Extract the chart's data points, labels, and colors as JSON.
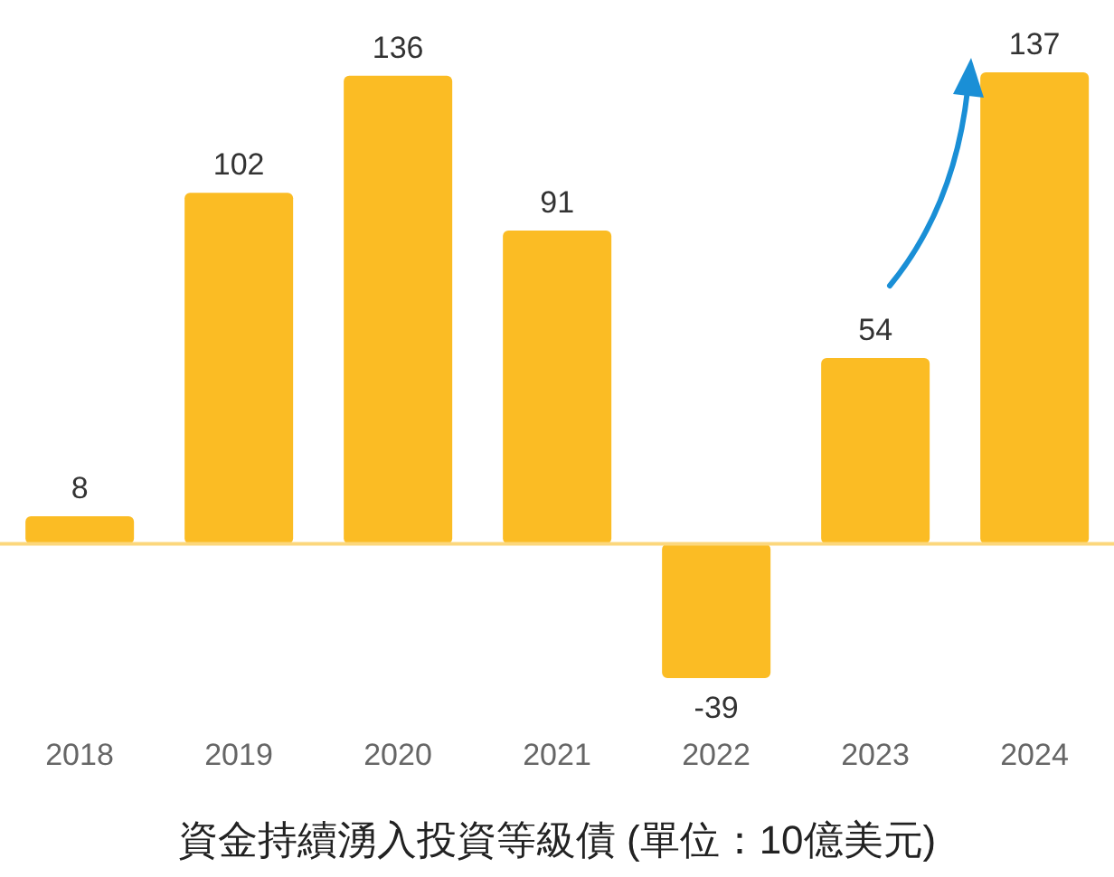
{
  "chart_data": {
    "type": "bar",
    "title": "資金持續湧入投資等級債 (單位：10億美元)",
    "categories": [
      "2018",
      "2019",
      "2020",
      "2021",
      "2022",
      "2023",
      "2024"
    ],
    "values": [
      8,
      102,
      136,
      91,
      -39,
      54,
      137
    ],
    "color": "#fbbc24",
    "data_labels": true,
    "tick_labels": "x",
    "ref_lines": [
      {
        "axis": "y",
        "value": 0,
        "color": "#fcd77c"
      }
    ]
  }
}
